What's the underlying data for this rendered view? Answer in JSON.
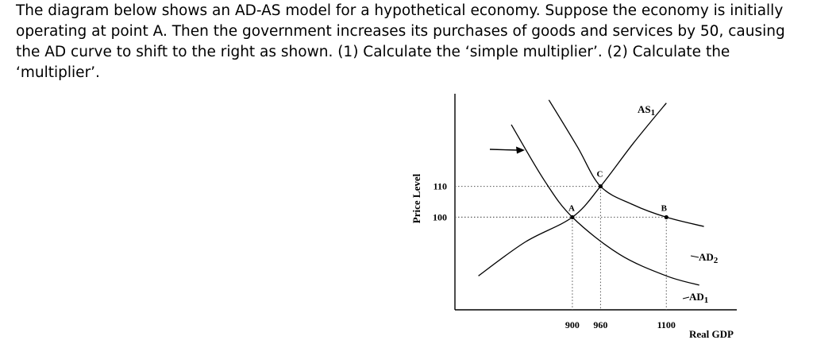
{
  "question": {
    "lines": [
      "The diagram below shows an AD-AS model for a hypothetical economy. Suppose the economy is initially",
      "operating at point A. Then the government increases its purchases of goods and services by 50, causing",
      "the AD curve to shift to the right as shown. (1) Calculate the ‘simple multiplier’. (2) Calculate the",
      "‘multiplier’."
    ]
  },
  "chart_data": {
    "type": "line",
    "xlabel": "Real GDP",
    "ylabel": "Price Level",
    "x_ticks": [
      900,
      960,
      1100
    ],
    "y_ticks": [
      100,
      110
    ],
    "xlim": [
      650,
      1250
    ],
    "ylim": [
      70,
      140
    ],
    "series": [
      {
        "name": "AS",
        "label_main": "AS",
        "label_sub": "1",
        "points": [
          [
            700,
            81
          ],
          [
            800,
            92
          ],
          [
            900,
            100
          ],
          [
            960,
            110
          ],
          [
            1030,
            124
          ],
          [
            1100,
            137
          ]
        ]
      },
      {
        "name": "AD",
        "label_main": "AD",
        "label_sub": "1",
        "points": [
          [
            770,
            130
          ],
          [
            840,
            112
          ],
          [
            900,
            100
          ],
          [
            1000,
            88
          ],
          [
            1100,
            81
          ],
          [
            1170,
            78
          ]
        ]
      },
      {
        "name": "AD",
        "label_main": "AD",
        "label_sub": "2",
        "points": [
          [
            850,
            138
          ],
          [
            910,
            123
          ],
          [
            960,
            110
          ],
          [
            1030,
            104
          ],
          [
            1100,
            100
          ],
          [
            1180,
            97
          ]
        ]
      }
    ],
    "points": [
      {
        "label": "A",
        "x": 900,
        "y": 100
      },
      {
        "label": "C",
        "x": 960,
        "y": 110
      },
      {
        "label": "B",
        "x": 1100,
        "y": 100
      }
    ],
    "annotations": [
      "shift-right arrow"
    ],
    "grid": false
  },
  "colors": {
    "ink": "#000000",
    "guide": "#555555"
  }
}
